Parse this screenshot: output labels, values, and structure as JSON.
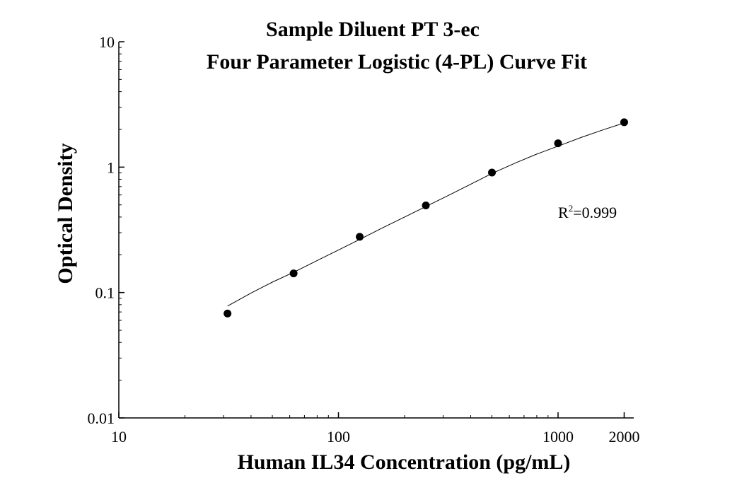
{
  "chart_data": {
    "type": "scatter",
    "title": "Sample Diluent PT 3-ec",
    "subtitle": "Four Parameter Logistic (4-PL) Curve Fit",
    "xlabel": "Human IL34 Concentration (pg/mL)",
    "ylabel": "Optical Density",
    "x_scale": "log",
    "y_scale": "log",
    "xlim": [
      10,
      2000
    ],
    "ylim": [
      0.01,
      10
    ],
    "x_ticks": [
      10,
      100,
      1000,
      2000
    ],
    "x_tick_labels": [
      "10",
      "100",
      "1000",
      "2000"
    ],
    "y_ticks": [
      0.01,
      0.1,
      1,
      10
    ],
    "y_tick_labels": [
      "0.01",
      "0.1",
      "1",
      "10"
    ],
    "grid": false,
    "series": [
      {
        "x": [
          31.25,
          62.5,
          125,
          250,
          500,
          1000,
          2000
        ],
        "y": [
          0.068,
          0.142,
          0.278,
          0.495,
          0.905,
          1.55,
          2.28
        ],
        "marker": "filled-circle",
        "color": "#000000"
      }
    ],
    "fit": {
      "model": "4PL",
      "x": [
        31.25,
        40,
        50,
        62.5,
        80,
        100,
        125,
        160,
        200,
        250,
        320,
        400,
        500,
        640,
        800,
        1000,
        1280,
        1600,
        2000
      ],
      "y": [
        0.078,
        0.099,
        0.121,
        0.145,
        0.18,
        0.218,
        0.265,
        0.33,
        0.4,
        0.485,
        0.6,
        0.73,
        0.89,
        1.08,
        1.27,
        1.47,
        1.73,
        1.98,
        2.25
      ],
      "color": "#000000"
    },
    "annotation": {
      "base": "R",
      "sup": "2",
      "rest": "=0.999"
    }
  }
}
